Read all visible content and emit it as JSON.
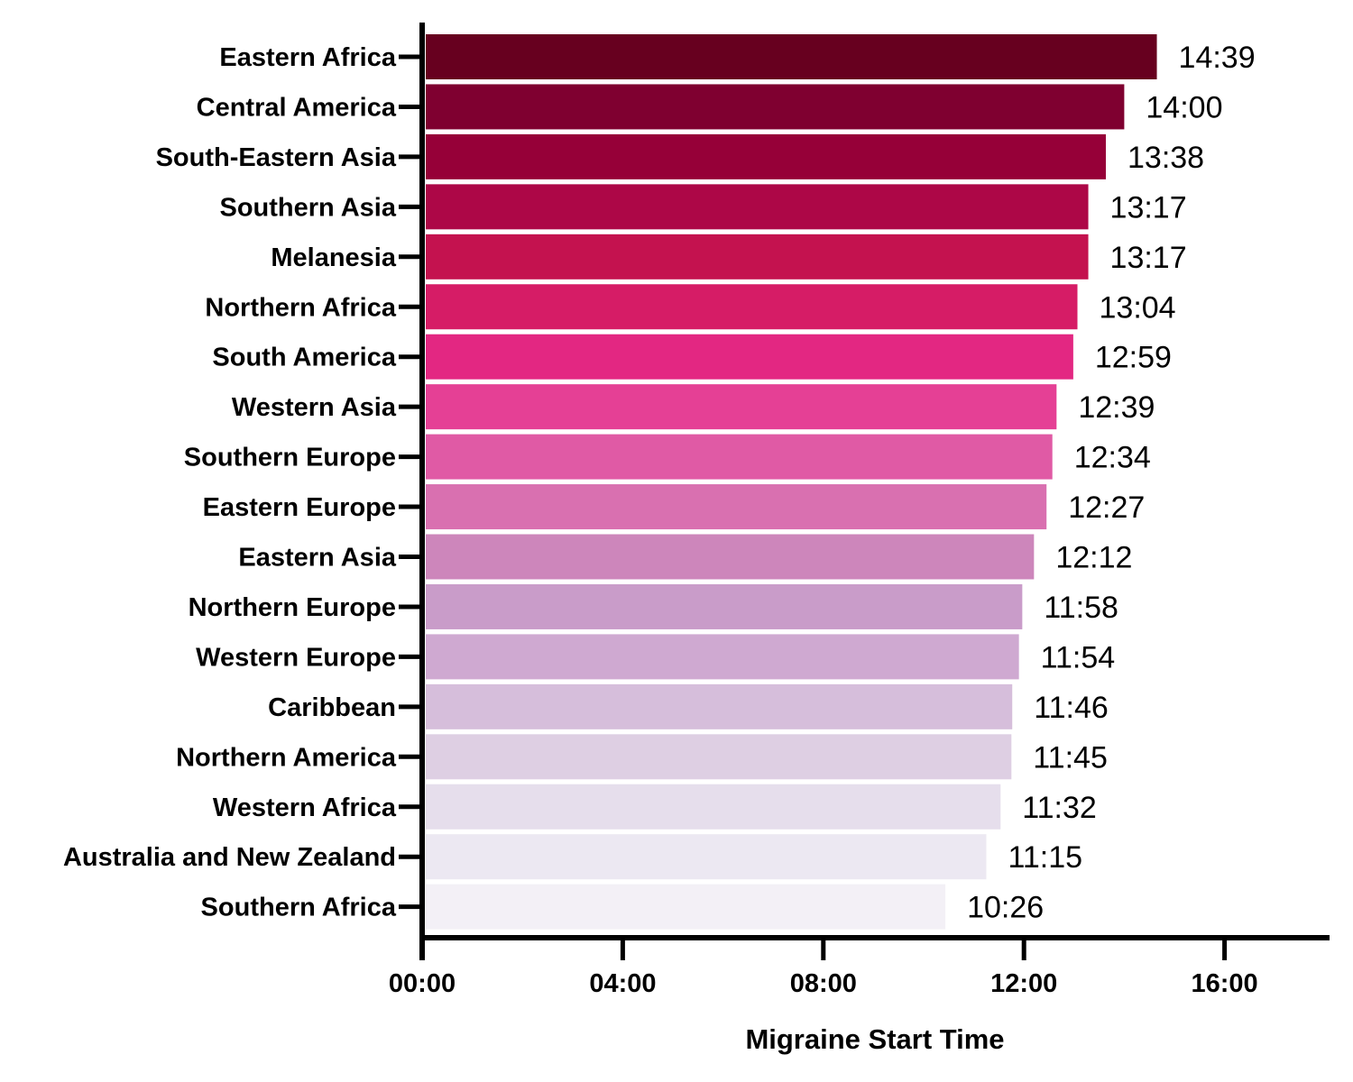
{
  "chart_data": {
    "type": "bar",
    "orientation": "horizontal",
    "xlabel": "Migraine Start Time",
    "ylabel": "",
    "x_unit": "hours",
    "xlim": [
      0,
      18
    ],
    "x_ticks": [
      0,
      4,
      8,
      12,
      16
    ],
    "x_tick_labels": [
      "00:00",
      "04:00",
      "08:00",
      "12:00",
      "16:00"
    ],
    "grid": false,
    "legend": "none",
    "categories": [
      "Eastern Africa",
      "Central America",
      "South-Eastern Asia",
      "Southern Asia",
      "Melanesia",
      "Northern Africa",
      "South America",
      "Western Asia",
      "Southern Europe",
      "Eastern Europe",
      "Eastern Asia",
      "Northern Europe",
      "Western Europe",
      "Caribbean",
      "Northern America",
      "Western Africa",
      "Australia and New Zealand",
      "Southern Africa"
    ],
    "values": [
      14.65,
      14.0,
      13.6333,
      13.2833,
      13.2833,
      13.0667,
      12.9833,
      12.65,
      12.5667,
      12.45,
      12.2,
      11.9667,
      11.9,
      11.7667,
      11.75,
      11.5333,
      11.25,
      10.4333
    ],
    "value_labels": [
      "14:39",
      "14:00",
      "13:38",
      "13:17",
      "13:17",
      "13:04",
      "12:59",
      "12:39",
      "12:34",
      "12:27",
      "12:12",
      "11:58",
      "11:54",
      "11:46",
      "11:45",
      "11:32",
      "11:15",
      "10:26"
    ],
    "colors": [
      "#67001f",
      "#7f0030",
      "#960038",
      "#ad0747",
      "#c4124f",
      "#d61c66",
      "#e32782",
      "#e54095",
      "#e05aa5",
      "#d970b0",
      "#cd86bb",
      "#c99cc9",
      "#cfa9d1",
      "#d6bedb",
      "#decfe3",
      "#e6deec",
      "#ece8f2",
      "#f3f0f6"
    ]
  }
}
